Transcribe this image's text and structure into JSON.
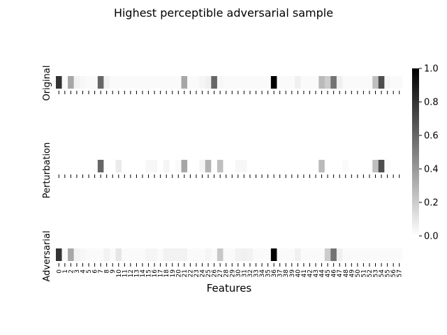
{
  "chart_data": {
    "type": "heatmap",
    "title": "Highest perceptible adversarial sample",
    "xlabel": "Features",
    "colormap": {
      "low": "#ffffff",
      "high": "#000000"
    },
    "colorbar": {
      "range": [
        0.0,
        1.0
      ],
      "ticks": [
        "0.0",
        "0.2",
        "0.4",
        "0.6",
        "0.8",
        "1.0"
      ]
    },
    "x_ticks": [
      "0",
      "1",
      "2",
      "3",
      "4",
      "5",
      "6",
      "7",
      "8",
      "9",
      "10",
      "11",
      "12",
      "13",
      "14",
      "15",
      "16",
      "17",
      "18",
      "19",
      "20",
      "21",
      "22",
      "23",
      "24",
      "25",
      "26",
      "27",
      "28",
      "29",
      "30",
      "31",
      "32",
      "33",
      "34",
      "35",
      "36",
      "37",
      "38",
      "39",
      "40",
      "41",
      "42",
      "43",
      "44",
      "45",
      "46",
      "47",
      "48",
      "49",
      "50",
      "51",
      "52",
      "53",
      "54",
      "55",
      "56",
      "57"
    ],
    "rows": [
      {
        "label": "Original",
        "values": [
          0.8,
          0.02,
          0.35,
          0.05,
          0.03,
          0.02,
          0.02,
          0.6,
          0.05,
          0.02,
          0.02,
          0.02,
          0.02,
          0.02,
          0.02,
          0.02,
          0.02,
          0.02,
          0.02,
          0.02,
          0.02,
          0.35,
          0.02,
          0.02,
          0.04,
          0.06,
          0.6,
          0.03,
          0.02,
          0.02,
          0.02,
          0.02,
          0.02,
          0.02,
          0.02,
          0.02,
          1.0,
          0.02,
          0.02,
          0.02,
          0.06,
          0.02,
          0.02,
          0.02,
          0.27,
          0.2,
          0.55,
          0.06,
          0.02,
          0.02,
          0.02,
          0.02,
          0.02,
          0.25,
          0.7,
          0.04,
          0.02,
          0.02
        ]
      },
      {
        "label": "Perturbation",
        "values": [
          0,
          0,
          0,
          0,
          0,
          0,
          0,
          0.6,
          0,
          0,
          0.08,
          0,
          0,
          0,
          0,
          0.03,
          0.03,
          0,
          0.04,
          0,
          0.02,
          0.35,
          0,
          0,
          0.04,
          0.3,
          0,
          0.25,
          0,
          0,
          0.03,
          0.03,
          0,
          0,
          0,
          0,
          0,
          0,
          0,
          0,
          0,
          0,
          0,
          0,
          0.27,
          0,
          0,
          0,
          0.02,
          0,
          0,
          0,
          0,
          0.25,
          0.7,
          0.02,
          0,
          0
        ]
      },
      {
        "label": "Adversarial",
        "values": [
          0.8,
          0.02,
          0.35,
          0.05,
          0.03,
          0.02,
          0.02,
          0.02,
          0.05,
          0.02,
          0.1,
          0.02,
          0.02,
          0.02,
          0.02,
          0.04,
          0.04,
          0.02,
          0.05,
          0.05,
          0.05,
          0.05,
          0.02,
          0.02,
          0.02,
          0.04,
          0.02,
          0.22,
          0.02,
          0.02,
          0.05,
          0.06,
          0.05,
          0.02,
          0.02,
          0.02,
          1.0,
          0.02,
          0.02,
          0.02,
          0.06,
          0.02,
          0.02,
          0.02,
          0.02,
          0.2,
          0.55,
          0.06,
          0.02,
          0.02,
          0.02,
          0.02,
          0.02,
          0.02,
          0.02,
          0.02,
          0.02,
          0.02
        ]
      }
    ]
  }
}
